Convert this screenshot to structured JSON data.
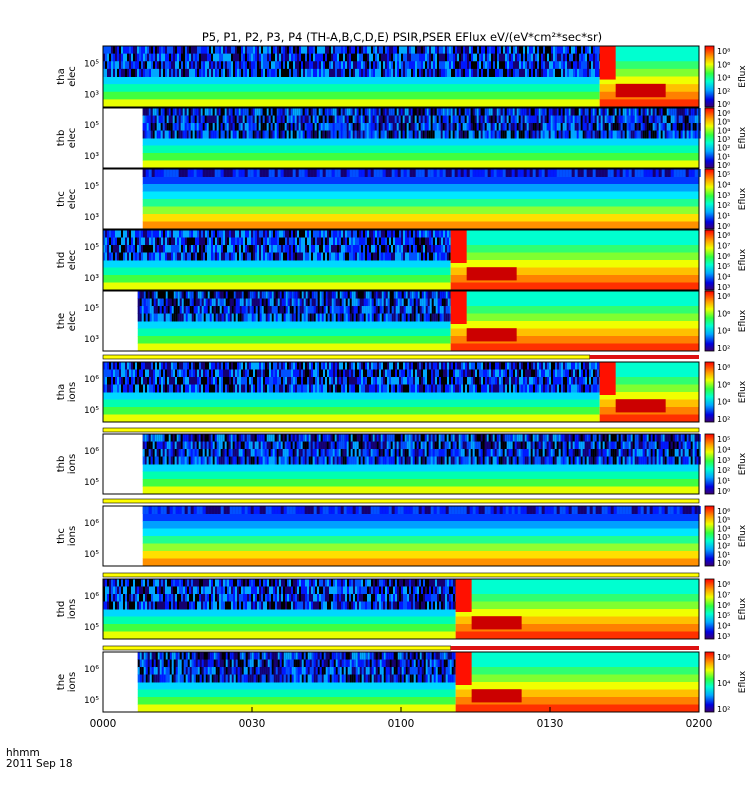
{
  "chart_data": {
    "type": "heatmap",
    "title": "P5, P1, P2, P3, P4 (TH-A,B,C,D,E) PSIR,PSER EFlux eV/(eV*cm²*sec*sr)",
    "x_tick_labels": [
      "0000",
      "0030",
      "0100",
      "0130",
      "0200"
    ],
    "x_range_minutes": [
      0,
      120
    ],
    "x_label_line1": "hhmm",
    "x_label_line2": "2011 Sep 18",
    "colorbar_label": "Eflux",
    "panels": [
      {
        "label_line1": "tha",
        "label_line2": "elec",
        "data_start_min": 0,
        "change_min": 100,
        "y_ticks": [
          "10⁵",
          "10³"
        ],
        "cbar_ticks": [
          "10⁸",
          "10⁶",
          "10⁴",
          "10²",
          "10⁰"
        ],
        "mode_bar": null
      },
      {
        "label_line1": "thb",
        "label_line2": "elec",
        "data_start_min": 8,
        "change_min": null,
        "y_ticks": [
          "10⁵",
          "10³"
        ],
        "cbar_ticks": [
          "10⁶",
          "10⁵",
          "10⁴",
          "10³",
          "10²",
          "10¹",
          "10⁰"
        ],
        "mode_bar": null
      },
      {
        "label_line1": "thc",
        "label_line2": "elec",
        "data_start_min": 8,
        "change_min": null,
        "y_ticks": [
          "10⁵",
          "10³"
        ],
        "cbar_ticks": [
          "10⁵",
          "10⁴",
          "10³",
          "10²",
          "10¹",
          "10⁰"
        ],
        "mode_bar": null
      },
      {
        "label_line1": "thd",
        "label_line2": "elec",
        "data_start_min": 0,
        "change_min": 70,
        "y_ticks": [
          "10⁵",
          "10³"
        ],
        "cbar_ticks": [
          "10⁸",
          "10⁷",
          "10⁶",
          "10⁵",
          "10⁴",
          "10³"
        ],
        "mode_bar": null
      },
      {
        "label_line1": "the",
        "label_line2": "elec",
        "data_start_min": 7,
        "change_min": 70,
        "y_ticks": [
          "10⁵",
          "10³"
        ],
        "cbar_ticks": [
          "10⁸",
          "10⁶",
          "10⁴",
          "10²"
        ],
        "mode_bar": {
          "red_from_min": 98
        }
      },
      {
        "label_line1": "tha",
        "label_line2": "ions",
        "data_start_min": 0,
        "change_min": 100,
        "y_ticks": [
          "10⁶",
          "10⁵"
        ],
        "cbar_ticks": [
          "10⁸",
          "10⁶",
          "10⁴",
          "10²"
        ],
        "mode_bar": {
          "red_from_min": null
        }
      },
      {
        "label_line1": "thb",
        "label_line2": "ions",
        "data_start_min": 8,
        "change_min": null,
        "y_ticks": [
          "10⁶",
          "10⁵"
        ],
        "cbar_ticks": [
          "10⁵",
          "10⁴",
          "10³",
          "10²",
          "10¹",
          "10⁰"
        ],
        "mode_bar": {
          "red_from_min": null
        }
      },
      {
        "label_line1": "thc",
        "label_line2": "ions",
        "data_start_min": 8,
        "change_min": null,
        "y_ticks": [
          "10⁶",
          "10⁵"
        ],
        "cbar_ticks": [
          "10⁶",
          "10⁵",
          "10⁴",
          "10³",
          "10²",
          "10¹",
          "10⁰"
        ],
        "mode_bar": {
          "red_from_min": null
        }
      },
      {
        "label_line1": "thd",
        "label_line2": "ions",
        "data_start_min": 0,
        "change_min": 71,
        "y_ticks": [
          "10⁶",
          "10⁵"
        ],
        "cbar_ticks": [
          "10⁸",
          "10⁷",
          "10⁶",
          "10⁵",
          "10⁴",
          "10³"
        ],
        "mode_bar": {
          "red_from_min": 70
        }
      },
      {
        "label_line1": "the",
        "label_line2": "ions",
        "data_start_min": 7,
        "change_min": 71,
        "y_ticks": [
          "10⁶",
          "10⁵"
        ],
        "cbar_ticks": [
          "10⁶",
          "10⁴",
          "10²"
        ],
        "mode_bar": {
          "red_from_min": 69
        }
      }
    ],
    "colors": {
      "bar_yellow": "#ffff00",
      "bar_red": "#dd1111"
    }
  }
}
